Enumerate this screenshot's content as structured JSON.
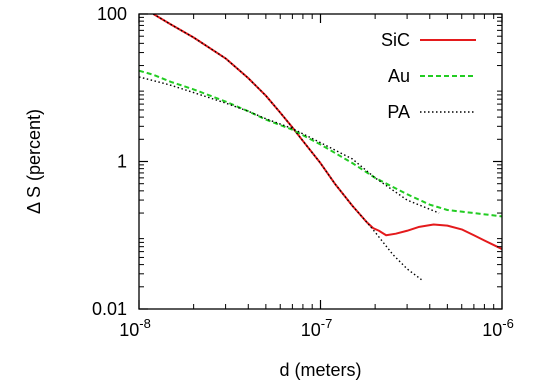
{
  "chart_data": {
    "type": "line",
    "xlabel": "d (meters)",
    "ylabel": "Δ S (percent)",
    "xscale": "log",
    "yscale": "log",
    "xlim": [
      1e-08,
      1e-06
    ],
    "ylim": [
      0.01,
      100
    ],
    "grid": false,
    "legend_position": "top-right",
    "x_ticks": [
      {
        "value": 1e-08,
        "base": "10",
        "exp": "-8"
      },
      {
        "value": 1e-07,
        "base": "10",
        "exp": "-7"
      },
      {
        "value": 1e-06,
        "base": "10",
        "exp": "-6"
      }
    ],
    "y_ticks": [
      {
        "value": 0.01,
        "label": "0.01"
      },
      {
        "value": 1,
        "label": "1"
      },
      {
        "value": 100,
        "label": "100"
      }
    ],
    "series": [
      {
        "name": "SiC",
        "color": "#e41a1c",
        "style": "solid",
        "points": [
          [
            1.2e-08,
            100
          ],
          [
            1.5e-08,
            72
          ],
          [
            2e-08,
            48
          ],
          [
            3e-08,
            25
          ],
          [
            4e-08,
            13.5
          ],
          [
            5e-08,
            7.8
          ],
          [
            6e-08,
            4.6
          ],
          [
            7e-08,
            2.9
          ],
          [
            8e-08,
            1.9
          ],
          [
            1e-07,
            0.95
          ],
          [
            1.2e-07,
            0.5
          ],
          [
            1.5e-07,
            0.25
          ],
          [
            1.8e-07,
            0.15
          ],
          [
            1.95e-07,
            0.125
          ],
          [
            2.1e-07,
            0.115
          ],
          [
            2.3e-07,
            0.1
          ],
          [
            2.6e-07,
            0.105
          ],
          [
            3e-07,
            0.115
          ],
          [
            3.5e-07,
            0.13
          ],
          [
            4.2e-07,
            0.14
          ],
          [
            5e-07,
            0.135
          ],
          [
            6e-07,
            0.12
          ],
          [
            7e-07,
            0.1
          ],
          [
            8e-07,
            0.085
          ],
          [
            1e-06,
            0.065
          ]
        ]
      },
      {
        "name": "Au",
        "color": "#22cc22",
        "style": "dashed",
        "points": [
          [
            1e-08,
            17
          ],
          [
            1.2e-08,
            15
          ],
          [
            1.5e-08,
            12
          ],
          [
            2e-08,
            9.5
          ],
          [
            3e-08,
            6.5
          ],
          [
            4e-08,
            4.8
          ],
          [
            5e-08,
            3.7
          ],
          [
            7e-08,
            2.7
          ],
          [
            1e-07,
            1.7
          ],
          [
            1.5e-07,
            0.95
          ],
          [
            2e-07,
            0.6
          ],
          [
            3e-07,
            0.36
          ],
          [
            4e-07,
            0.26
          ],
          [
            5e-07,
            0.22
          ],
          [
            7e-07,
            0.2
          ],
          [
            1e-06,
            0.18
          ]
        ]
      },
      {
        "name": "PA",
        "color": "#000000",
        "style": "dotted",
        "segments": [
          [
            [
              1e-08,
              14
            ],
            [
              1.2e-08,
              12.5
            ],
            [
              1.5e-08,
              10.8
            ],
            [
              2e-08,
              8.6
            ],
            [
              3e-08,
              6.2
            ],
            [
              4e-08,
              4.8
            ],
            [
              5e-08,
              3.8
            ],
            [
              7e-08,
              2.8
            ],
            [
              1e-07,
              1.8
            ],
            [
              1.5e-07,
              1.08
            ],
            [
              2e-07,
              0.6
            ],
            [
              3e-07,
              0.3
            ],
            [
              4.5e-07,
              0.2
            ]
          ],
          [
            [
              1.2e-08,
              100
            ],
            [
              1.5e-08,
              72
            ],
            [
              2e-08,
              48
            ],
            [
              3e-08,
              25
            ],
            [
              4e-08,
              13.5
            ],
            [
              5e-08,
              7.8
            ],
            [
              6e-08,
              4.6
            ],
            [
              7e-08,
              2.9
            ],
            [
              8e-08,
              1.9
            ],
            [
              1e-07,
              0.95
            ],
            [
              1.2e-07,
              0.5
            ],
            [
              1.5e-07,
              0.25
            ],
            [
              1.8e-07,
              0.15
            ],
            [
              2e-07,
              0.11
            ],
            [
              2.5e-07,
              0.055
            ],
            [
              3e-07,
              0.035
            ],
            [
              3.6e-07,
              0.025
            ]
          ]
        ]
      }
    ]
  }
}
